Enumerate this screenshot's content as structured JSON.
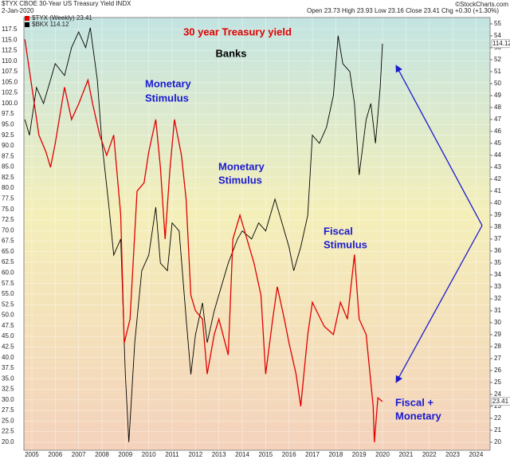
{
  "chart_data": {
    "type": "line",
    "title": "$TYX CBOE 30-Year US Treasury Yield INDX",
    "date": "2-Jan-2020",
    "quote": "Open 23.73  High 23.93  Low 23.16  Close 23.41  Chg +0.30 (+1.30%)",
    "credit": "©StockCharts.com",
    "annotations": [
      {
        "text": "30 year Treasury yield",
        "color": "#e00000"
      },
      {
        "text": "Banks",
        "color": "#000000"
      },
      {
        "text": "Monetary",
        "color": "#1a1ad0"
      },
      {
        "text": "Stimulus",
        "color": "#1a1ad0"
      },
      {
        "text": "Monetary",
        "color": "#1a1ad0"
      },
      {
        "text": "Stimulus",
        "color": "#1a1ad0"
      },
      {
        "text": "Fiscal",
        "color": "#1a1ad0"
      },
      {
        "text": "Stimulus",
        "color": "#1a1ad0"
      },
      {
        "text": "Fiscal +",
        "color": "#1a1ad0"
      },
      {
        "text": "Monetary",
        "color": "#1a1ad0"
      }
    ],
    "grid": true,
    "xlim": [
      2004.66,
      2024.6
    ],
    "xticks": [
      2005,
      2006,
      2007,
      2008,
      2009,
      2010,
      2011,
      2012,
      2013,
      2014,
      2015,
      2016,
      2017,
      2018,
      2019,
      2020,
      2021,
      2022,
      2023,
      2024
    ],
    "ylim": [
      18.1,
      120.3
    ],
    "yticks": [
      {
        "value": 20,
        "label": "20.0"
      },
      22.5,
      {
        "value": 25,
        "label": "25.0"
      },
      27.5,
      {
        "value": 30,
        "label": "30.0"
      },
      32.5,
      {
        "value": 35,
        "label": "35.0"
      },
      37.5,
      {
        "value": 40,
        "label": "40.0"
      },
      42.5,
      {
        "value": 45,
        "label": "45.0"
      },
      47.5,
      {
        "value": 50,
        "label": "50.0"
      },
      52.5,
      {
        "value": 55,
        "label": "55.0"
      },
      57.5,
      {
        "value": 60,
        "label": "60.0"
      },
      62.5,
      {
        "value": 65,
        "label": "65.0"
      },
      67.5,
      {
        "value": 70,
        "label": "70.0"
      },
      72.5,
      {
        "value": 75,
        "label": "75.0"
      },
      77.5,
      {
        "value": 80,
        "label": "80.0"
      },
      82.5,
      {
        "value": 85,
        "label": "85.0"
      },
      87.5,
      {
        "value": 90,
        "label": "90.0"
      },
      92.5,
      {
        "value": 95,
        "label": "95.0"
      },
      97.5,
      {
        "value": 100,
        "label": "100.0"
      },
      102.5,
      {
        "value": 105,
        "label": "105.0"
      },
      107.5,
      {
        "value": 110,
        "label": "110.0"
      },
      112.5,
      {
        "value": 115,
        "label": "115.0"
      },
      117.5
    ],
    "y2lim": [
      19.33,
      55.53
    ],
    "y2ticks": [
      20,
      21,
      22,
      23,
      24,
      25,
      26,
      27,
      28,
      29,
      30,
      31,
      32,
      33,
      34,
      35,
      36,
      37,
      38,
      39,
      40,
      41,
      42,
      43,
      44,
      45,
      46,
      47,
      48,
      49,
      50,
      51,
      52,
      53,
      54,
      55
    ],
    "series": [
      {
        "name": "$BKX 114.12",
        "color": "#000000",
        "axis": "y",
        "x": [
          2004.7,
          2004.9,
          2005.2,
          2005.5,
          2005.8,
          2006.0,
          2006.4,
          2006.7,
          2007.0,
          2007.3,
          2007.5,
          2007.8,
          2008.0,
          2008.3,
          2008.5,
          2008.8,
          2009.0,
          2009.15,
          2009.4,
          2009.7,
          2010.0,
          2010.3,
          2010.5,
          2010.8,
          2011.0,
          2011.3,
          2011.6,
          2011.8,
          2012.0,
          2012.3,
          2012.5,
          2012.8,
          2013.0,
          2013.4,
          2013.8,
          2014.0,
          2014.4,
          2014.7,
          2015.0,
          2015.4,
          2015.7,
          2016.0,
          2016.2,
          2016.5,
          2016.8,
          2017.0,
          2017.3,
          2017.6,
          2017.9,
          2018.1,
          2018.3,
          2018.6,
          2018.8,
          2019.0,
          2019.3,
          2019.5,
          2019.7,
          2019.9,
          2020.0
        ],
        "values": [
          96.2,
          92.5,
          103.8,
          100,
          105.6,
          109.4,
          106.6,
          113.2,
          116.9,
          113.2,
          117.9,
          105.6,
          90.6,
          75.5,
          64.2,
          68,
          36,
          20,
          43.5,
          60.5,
          64.2,
          75.5,
          62.3,
          60.5,
          71.8,
          69.9,
          49.2,
          36,
          45.4,
          52.9,
          43.5,
          51,
          54.8,
          62.3,
          68,
          69.9,
          68,
          71.8,
          69.9,
          77.4,
          71.8,
          66.1,
          60.5,
          66.1,
          73.6,
          92.5,
          90.6,
          94.3,
          101.9,
          116,
          109.4,
          107.5,
          100,
          83.1,
          96.2,
          100,
          90.6,
          103.8,
          114.12
        ]
      },
      {
        "name": "$TYX (Weekly) 23.41",
        "color": "#e00000",
        "axis": "y2",
        "x": [
          2004.7,
          2005.0,
          2005.3,
          2005.6,
          2005.8,
          2006.0,
          2006.4,
          2006.7,
          2007.0,
          2007.4,
          2007.6,
          2007.9,
          2008.2,
          2008.5,
          2008.8,
          2008.95,
          2009.2,
          2009.5,
          2009.8,
          2010.0,
          2010.3,
          2010.5,
          2010.7,
          2010.9,
          2011.1,
          2011.4,
          2011.6,
          2011.8,
          2012.0,
          2012.3,
          2012.5,
          2012.8,
          2013.0,
          2013.4,
          2013.6,
          2013.9,
          2014.2,
          2014.5,
          2014.8,
          2015.0,
          2015.3,
          2015.5,
          2015.8,
          2016.0,
          2016.3,
          2016.5,
          2016.8,
          2017.0,
          2017.5,
          2017.9,
          2018.2,
          2018.5,
          2018.8,
          2019.0,
          2019.3,
          2019.6,
          2019.65,
          2019.8,
          2020.0
        ],
        "values": [
          53.7,
          49.7,
          45.7,
          44.3,
          43,
          45,
          49.7,
          47,
          48.3,
          50.3,
          48.3,
          45.7,
          44,
          45.7,
          39,
          28.3,
          30.3,
          41,
          41.7,
          44.3,
          47,
          43,
          37,
          42.7,
          47,
          44,
          40.3,
          32.3,
          31,
          30.3,
          25.7,
          29,
          30.3,
          27.3,
          37,
          39,
          37,
          35,
          32.3,
          25.7,
          30.3,
          33,
          30.3,
          28.3,
          25.7,
          23,
          29,
          31.7,
          29.7,
          29,
          31.7,
          30.3,
          35.7,
          30.3,
          29,
          23,
          20,
          23.7,
          23.41
        ]
      }
    ]
  }
}
